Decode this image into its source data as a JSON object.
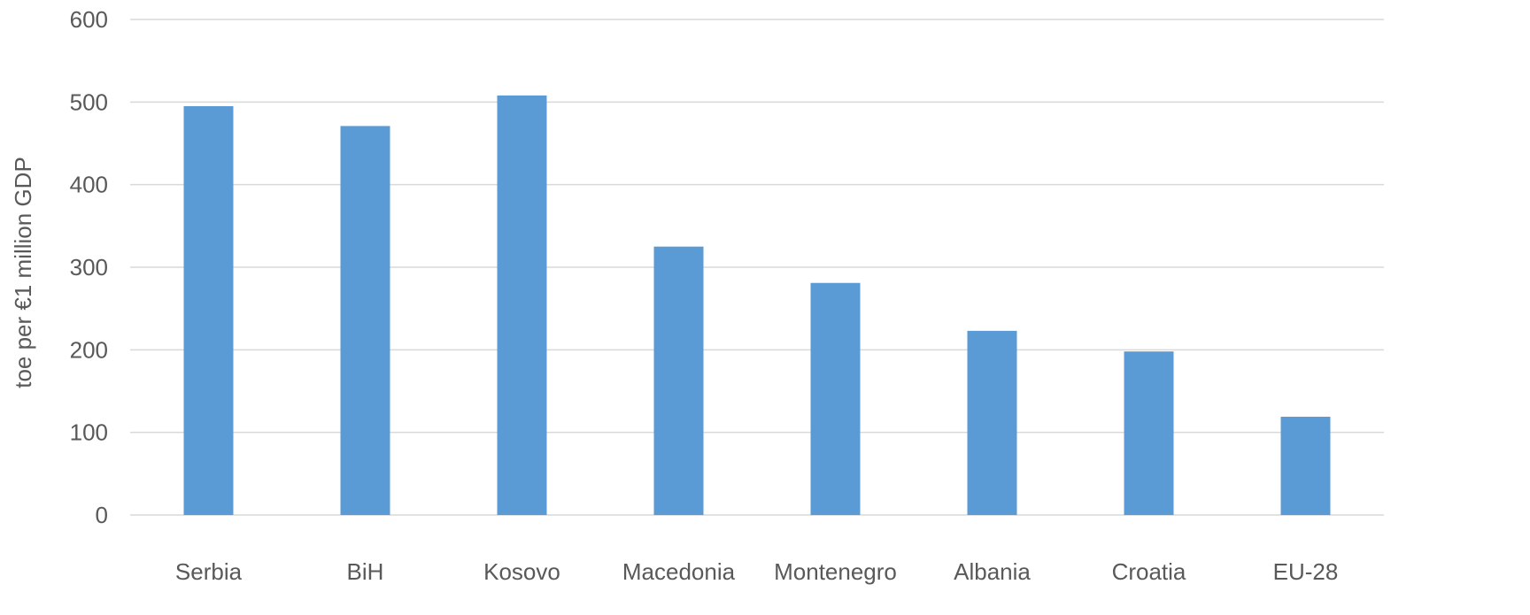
{
  "chart_data": {
    "type": "bar",
    "title": "",
    "xlabel": "",
    "ylabel": "toe per €1 million GDP",
    "categories": [
      "Serbia",
      "BiH",
      "Kosovo",
      "Macedonia",
      "Montenegro",
      "Albania",
      "Croatia",
      "EU-28"
    ],
    "values": [
      495,
      471,
      508,
      325,
      281,
      223,
      198,
      119
    ],
    "ylim": [
      0,
      600
    ],
    "yticks": [
      0,
      100,
      200,
      300,
      400,
      500,
      600
    ],
    "grid": true,
    "legend": "none",
    "bar_color": "#5b9bd5"
  }
}
